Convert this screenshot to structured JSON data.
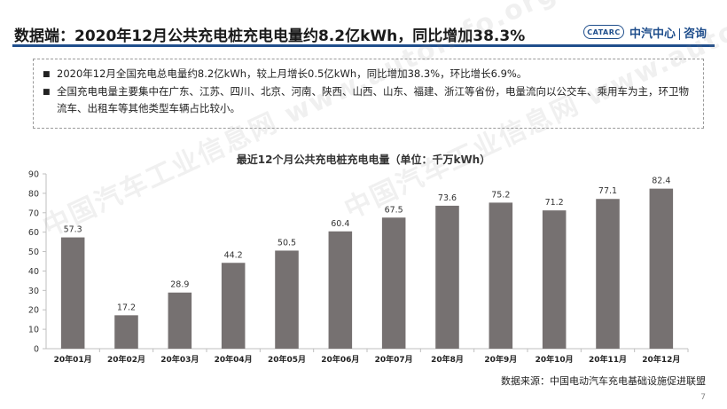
{
  "header": {
    "title": "数据端：2020年12月公共充电桩充电电量约8.2亿kWh，同比增加38.3%",
    "logo_mark": "CATARC",
    "logo_name": "中汽中心",
    "logo_sub": "咨询"
  },
  "summary": {
    "bullets": [
      "2020年12月全国充电总电量约8.2亿kWh，较上月增长0.5亿kWh，同比增加38.3%，环比增长6.9%。",
      "全国充电电量主要集中在广东、江苏、四川、北京、河南、陕西、山西、山东、福建、浙江等省份，电量流向以公交车、乘用车为主，环卫物流车、出租车等其他类型车辆占比较小。"
    ]
  },
  "chart_data": {
    "type": "bar",
    "title": "最近12个月公共充电桩充电电量（单位：千万kWh）",
    "xlabel": "",
    "ylabel": "",
    "categories": [
      "20年01月",
      "20年02月",
      "20年03月",
      "20年04月",
      "20年05月",
      "20年06月",
      "20年07月",
      "20年8月",
      "20年9月",
      "20年10月",
      "20年11月",
      "20年12月"
    ],
    "values": [
      57.3,
      17.2,
      28.9,
      44.2,
      50.5,
      60.4,
      67.5,
      73.6,
      75.2,
      71.2,
      77.1,
      82.4
    ],
    "value_labels": [
      "57.3",
      "17.2",
      "28.9",
      "44.2",
      "50.5",
      "60.4",
      "67.5",
      "73.6",
      "75.2",
      "71.2",
      "77.1",
      "82.4"
    ],
    "ylim": [
      0,
      90
    ],
    "yticks": [
      "0",
      "10",
      "20",
      "30",
      "40",
      "50",
      "60",
      "70",
      "80",
      "90"
    ],
    "grid": false,
    "legend": "none",
    "bar_color": "#767171"
  },
  "footnote": "数据来源：中国电动汽车充电基础设施促进联盟",
  "page_number": "7",
  "watermark": "中国汽车工业信息网 www.autoinfo.org.cn"
}
